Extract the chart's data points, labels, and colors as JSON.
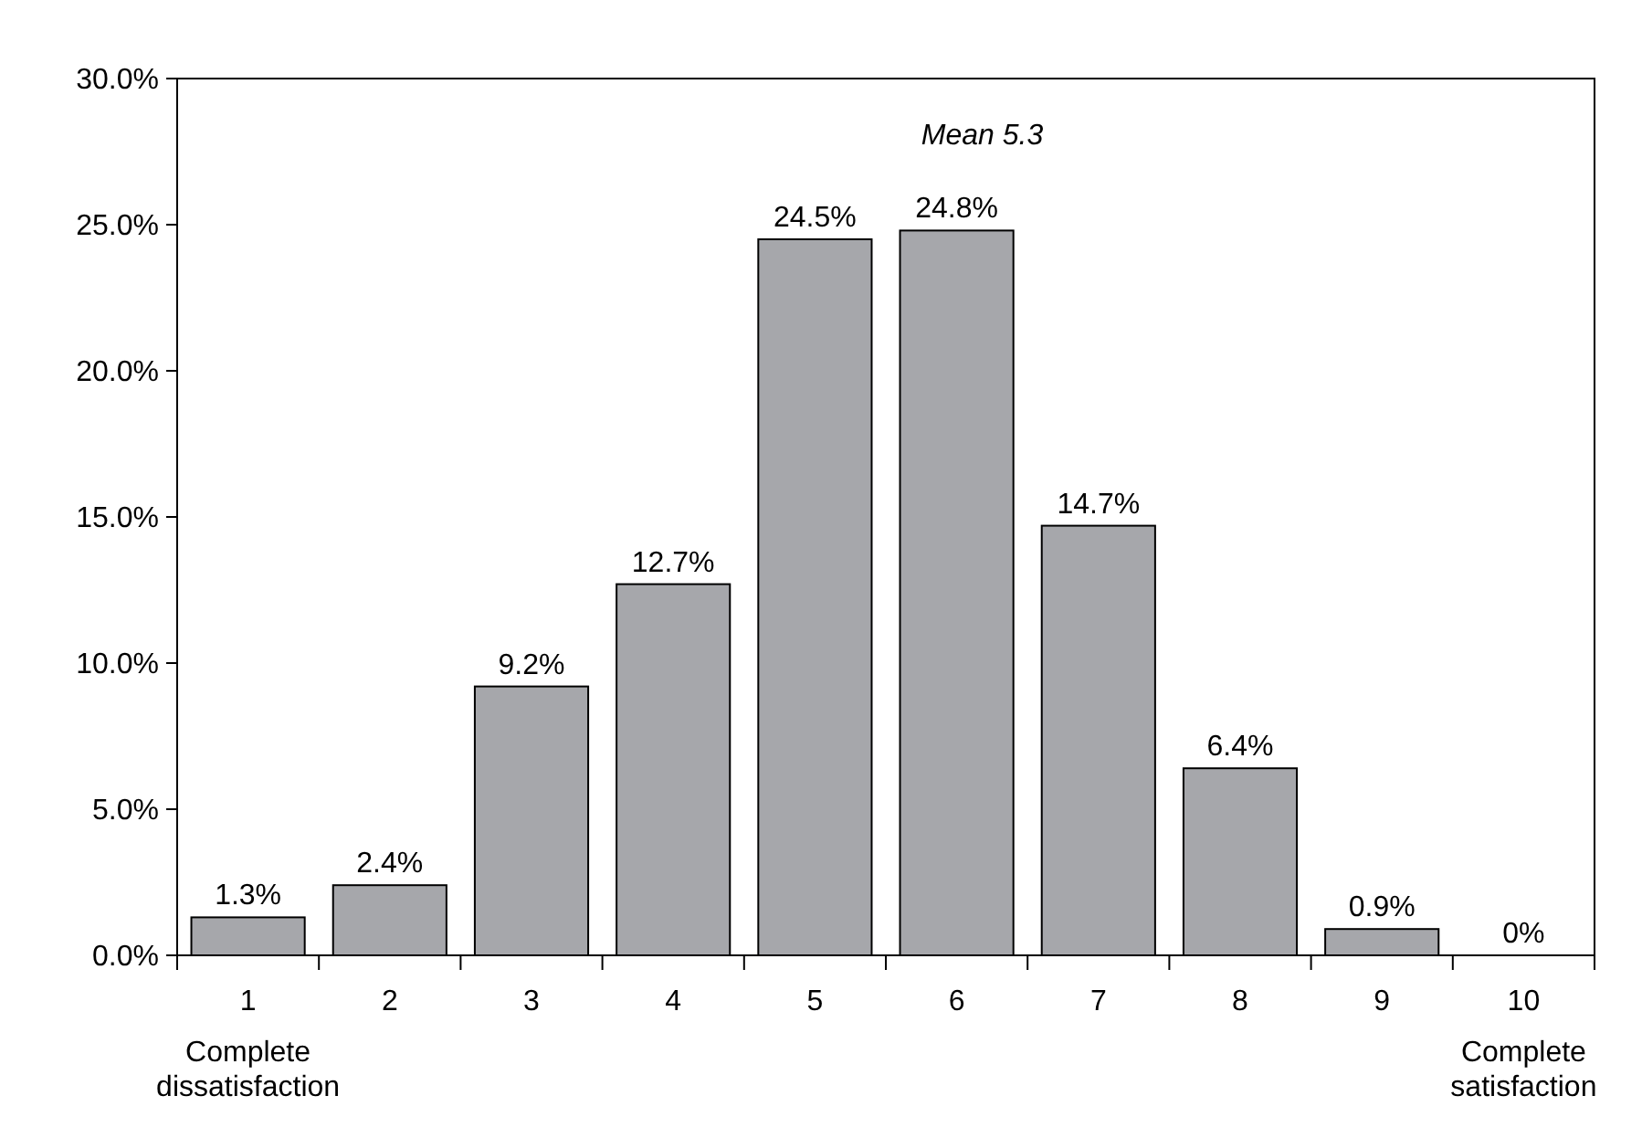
{
  "chart_data": {
    "type": "bar",
    "categories": [
      "1",
      "2",
      "3",
      "4",
      "5",
      "6",
      "7",
      "8",
      "9",
      "10"
    ],
    "values": [
      1.3,
      2.4,
      9.2,
      12.7,
      24.5,
      24.8,
      14.7,
      6.4,
      0.9,
      0
    ],
    "value_labels": [
      "1.3%",
      "2.4%",
      "9.2%",
      "12.7%",
      "24.5%",
      "24.8%",
      "14.7%",
      "6.4%",
      "0.9%",
      "0%"
    ],
    "color": "#a6a7ab",
    "ylim": [
      0,
      30
    ],
    "yticks": [
      {
        "value": 0,
        "label": "0.0%"
      },
      {
        "value": 5,
        "label": "5.0%"
      },
      {
        "value": 10,
        "label": "10.0%"
      },
      {
        "value": 15,
        "label": "15.0%"
      },
      {
        "value": 20,
        "label": "20.0%"
      },
      {
        "value": 25,
        "label": "25.0%"
      },
      {
        "value": 30,
        "label": "30.0%"
      }
    ],
    "grid": false,
    "annotations": [
      "Mean 5.3",
      "Complete dissatisfaction",
      "Complete satisfaction"
    ]
  }
}
